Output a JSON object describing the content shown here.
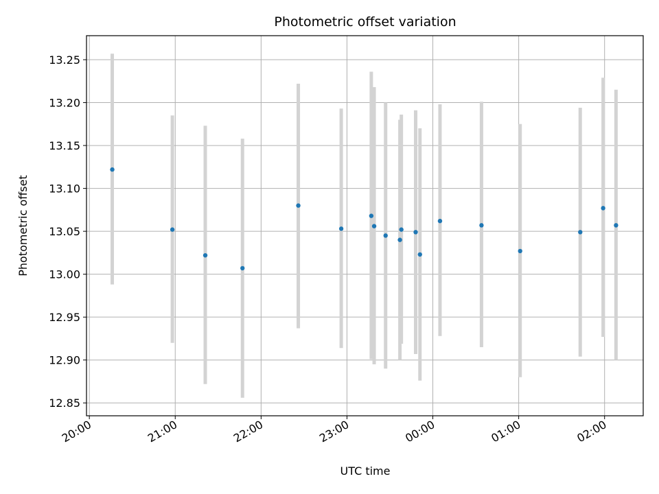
{
  "chart_data": {
    "type": "scatter",
    "title": "Photometric offset variation",
    "xlabel": "UTC time",
    "ylabel": "Photometric offset",
    "xlim": [
      "2000-01-01T19:58",
      "2000-01-02T02:27"
    ],
    "ylim": [
      12.835,
      13.278
    ],
    "x_ticks": [
      "20:00",
      "21:00",
      "22:00",
      "23:00",
      "00:00",
      "01:00",
      "02:00"
    ],
    "y_ticks": [
      "12.85",
      "12.90",
      "12.95",
      "13.00",
      "13.05",
      "13.10",
      "13.15",
      "13.20",
      "13.25"
    ],
    "grid": true,
    "marker_color": "#1f77b4",
    "errorbar_color": "#d3d3d3",
    "series": [
      {
        "points": [
          {
            "x": "2000-01-01T20:16",
            "y": 13.122,
            "ylow": 12.988,
            "yhigh": 13.257
          },
          {
            "x": "2000-01-01T20:58",
            "y": 13.052,
            "ylow": 12.92,
            "yhigh": 13.185
          },
          {
            "x": "2000-01-01T21:21",
            "y": 13.022,
            "ylow": 12.872,
            "yhigh": 13.173
          },
          {
            "x": "2000-01-01T21:47",
            "y": 13.007,
            "ylow": 12.856,
            "yhigh": 13.158
          },
          {
            "x": "2000-01-01T22:26",
            "y": 13.08,
            "ylow": 12.937,
            "yhigh": 13.222
          },
          {
            "x": "2000-01-01T22:56",
            "y": 13.053,
            "ylow": 12.914,
            "yhigh": 13.193
          },
          {
            "x": "2000-01-01T23:17",
            "y": 13.068,
            "ylow": 12.901,
            "yhigh": 13.236
          },
          {
            "x": "2000-01-01T23:19",
            "y": 13.056,
            "ylow": 12.895,
            "yhigh": 13.218
          },
          {
            "x": "2000-01-01T23:27",
            "y": 13.045,
            "ylow": 12.89,
            "yhigh": 13.2
          },
          {
            "x": "2000-01-01T23:37",
            "y": 13.04,
            "ylow": 12.9,
            "yhigh": 13.18
          },
          {
            "x": "2000-01-01T23:38",
            "y": 13.052,
            "ylow": 12.919,
            "yhigh": 13.186
          },
          {
            "x": "2000-01-01T23:48",
            "y": 13.049,
            "ylow": 12.907,
            "yhigh": 13.191
          },
          {
            "x": "2000-01-01T23:51",
            "y": 13.023,
            "ylow": 12.876,
            "yhigh": 13.17
          },
          {
            "x": "2000-01-02T00:05",
            "y": 13.062,
            "ylow": 12.928,
            "yhigh": 13.198
          },
          {
            "x": "2000-01-02T00:34",
            "y": 13.057,
            "ylow": 12.915,
            "yhigh": 13.201
          },
          {
            "x": "2000-01-02T01:01",
            "y": 13.027,
            "ylow": 12.88,
            "yhigh": 13.175
          },
          {
            "x": "2000-01-02T01:43",
            "y": 13.049,
            "ylow": 12.904,
            "yhigh": 13.194
          },
          {
            "x": "2000-01-02T01:59",
            "y": 13.077,
            "ylow": 12.927,
            "yhigh": 13.229
          },
          {
            "x": "2000-01-02T02:08",
            "y": 13.057,
            "ylow": 12.9,
            "yhigh": 13.215
          }
        ]
      }
    ]
  }
}
